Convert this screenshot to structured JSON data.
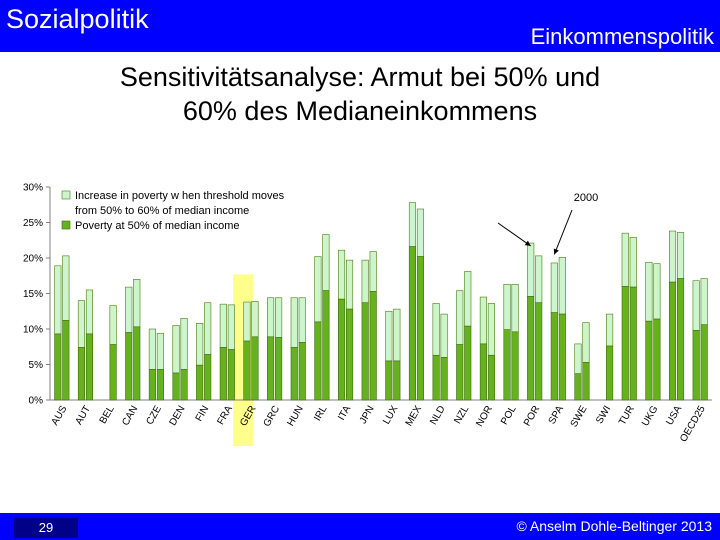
{
  "header": {
    "course": "Sozialpolitik",
    "topic": "Einkommenspolitik"
  },
  "title": {
    "line1": "Sensitivitätsanalyse: Armut bei 50% und",
    "line2": "60% des Medianeinkommens"
  },
  "footer": {
    "page_number": "29",
    "copyright": "© Anselm Dohle-Beltinger 2013"
  },
  "colors": {
    "header_bg": "#0000ff",
    "series_50": "#66b21e",
    "series_increase": "#ccf5cc",
    "highlight": "#ffff66"
  },
  "chart_data": {
    "type": "bar",
    "stacked": true,
    "ylim": [
      0,
      30
    ],
    "yticks": [
      "0%",
      "5%",
      "10%",
      "15%",
      "20%",
      "25%",
      "30%"
    ],
    "ytick_values": [
      0,
      5,
      10,
      15,
      20,
      25,
      30
    ],
    "categories": [
      "AUS",
      "AUT",
      "BEL",
      "CAN",
      "CZE",
      "DEN",
      "FIN",
      "FRA",
      "GER",
      "GRC",
      "HUN",
      "IRL",
      "ITA",
      "JPN",
      "LUX",
      "MEX",
      "NLD",
      "NZL",
      "NOR",
      "POL",
      "POR",
      "SPA",
      "SWE",
      "SWI",
      "TUR",
      "UKG",
      "USA",
      "OECD25"
    ],
    "highlighted_categories": [
      "FRA",
      "GER"
    ],
    "annotation": "2000",
    "legend": {
      "position": "top-left",
      "increase_label_line1": "Increase in poverty w hen threshold moves",
      "increase_label_line2": "from 50% to 60% of median income",
      "poverty50_label": "Poverty at 50% of median income"
    },
    "series": [
      {
        "name": "Poverty at 50% of median income",
        "values": [
          [
            9.3,
            11.2
          ],
          [
            7.4,
            9.3
          ],
          [
            null,
            7.8
          ],
          [
            9.5,
            10.3
          ],
          [
            4.3,
            4.3
          ],
          [
            3.8,
            4.3
          ],
          [
            4.9,
            6.4
          ],
          [
            7.4,
            7.1
          ],
          [
            8.3,
            8.9
          ],
          [
            8.9,
            8.8
          ],
          [
            7.4,
            8.1
          ],
          [
            11.0,
            15.4
          ],
          [
            14.2,
            12.8
          ],
          [
            13.7,
            15.3
          ],
          [
            5.5,
            5.5
          ],
          [
            21.6,
            20.2
          ],
          [
            6.3,
            6.0
          ],
          [
            7.8,
            10.4
          ],
          [
            7.9,
            6.3
          ],
          [
            9.9,
            9.6
          ],
          [
            14.6,
            13.7
          ],
          [
            12.3,
            12.1
          ],
          [
            3.7,
            5.3
          ],
          [
            null,
            7.6
          ],
          [
            16.0,
            15.9
          ],
          [
            11.1,
            11.4
          ],
          [
            16.6,
            17.1
          ],
          [
            9.8,
            10.6
          ]
        ]
      },
      {
        "name": "Increase in poverty w hen threshold moves from 50% to 60% of median income",
        "values": [
          [
            18.9,
            20.3
          ],
          [
            14.0,
            15.5
          ],
          [
            null,
            13.3
          ],
          [
            15.9,
            17.0
          ],
          [
            10.0,
            9.4
          ],
          [
            10.5,
            11.5
          ],
          [
            10.8,
            13.7
          ],
          [
            13.5,
            13.4
          ],
          [
            13.8,
            13.9
          ],
          [
            14.4,
            14.4
          ],
          [
            14.4,
            14.4
          ],
          [
            20.2,
            23.3
          ],
          [
            21.1,
            19.7
          ],
          [
            19.7,
            20.9
          ],
          [
            12.5,
            12.8
          ],
          [
            27.8,
            26.9
          ],
          [
            13.6,
            12.1
          ],
          [
            15.4,
            18.1
          ],
          [
            14.5,
            13.6
          ],
          [
            16.3,
            16.3
          ],
          [
            22.1,
            20.3
          ],
          [
            19.3,
            20.1
          ],
          [
            7.9,
            10.9
          ],
          [
            null,
            12.1
          ],
          [
            23.5,
            22.9
          ],
          [
            19.4,
            19.2
          ],
          [
            23.8,
            23.6
          ],
          [
            16.8,
            17.1
          ]
        ]
      }
    ]
  }
}
